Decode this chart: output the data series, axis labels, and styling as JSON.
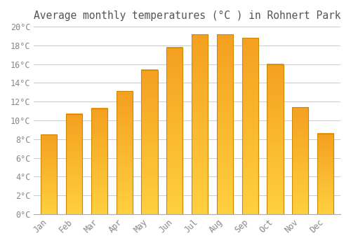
{
  "title": "Average monthly temperatures (°C ) in Rohnert Park",
  "months": [
    "Jan",
    "Feb",
    "Mar",
    "Apr",
    "May",
    "Jun",
    "Jul",
    "Aug",
    "Sep",
    "Oct",
    "Nov",
    "Dec"
  ],
  "values": [
    8.5,
    10.7,
    11.3,
    13.1,
    15.4,
    17.8,
    19.2,
    19.2,
    18.8,
    16.0,
    11.4,
    8.6
  ],
  "bar_color_bottom": "#FFD040",
  "bar_color_top": "#F5A020",
  "edge_color": "#CC8800",
  "ylim": [
    0,
    20
  ],
  "yticks": [
    0,
    2,
    4,
    6,
    8,
    10,
    12,
    14,
    16,
    18,
    20
  ],
  "ytick_labels": [
    "0°C",
    "2°C",
    "4°C",
    "6°C",
    "8°C",
    "10°C",
    "12°C",
    "14°C",
    "16°C",
    "18°C",
    "20°C"
  ],
  "background_color": "#FFFFFF",
  "grid_color": "#CCCCCC",
  "title_fontsize": 10.5,
  "tick_fontsize": 8.5,
  "bar_width": 0.65
}
